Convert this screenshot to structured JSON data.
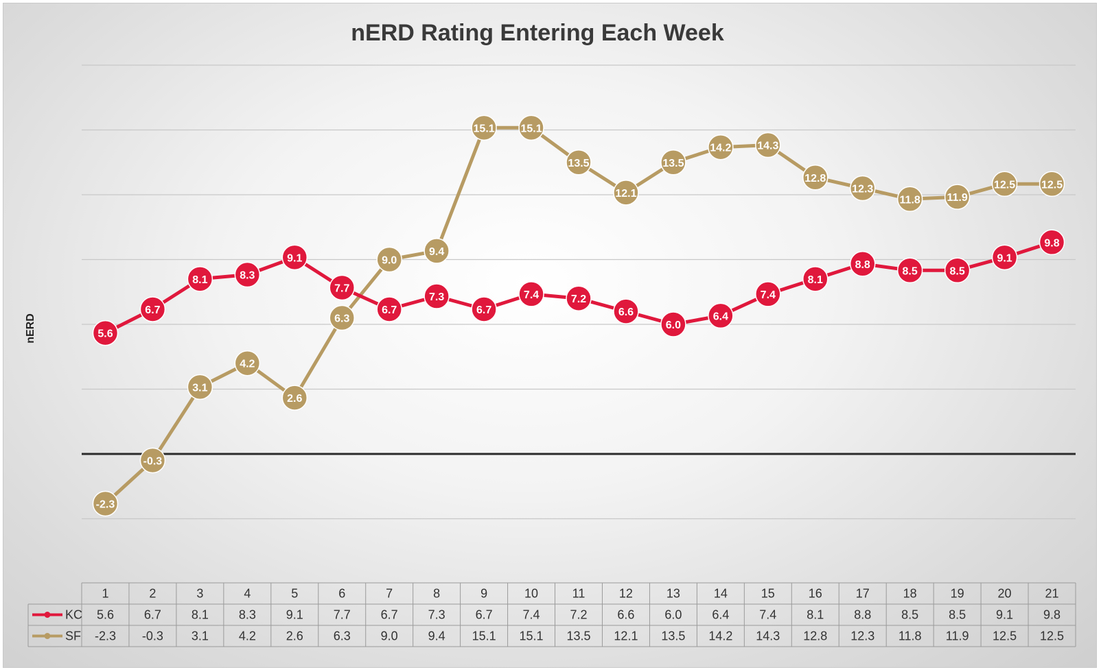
{
  "chart_data": {
    "type": "line",
    "title": "nERD Rating Entering Each Week",
    "ylabel": "nERD",
    "xlabel": "",
    "categories": [
      "1",
      "2",
      "3",
      "4",
      "5",
      "6",
      "7",
      "8",
      "9",
      "10",
      "11",
      "12",
      "13",
      "14",
      "15",
      "16",
      "17",
      "18",
      "19",
      "20",
      "21"
    ],
    "ylim": [
      -6,
      18
    ],
    "y_grid_step": 3,
    "grid": true,
    "legend_placement": "data-table-left",
    "data_table": true,
    "series": [
      {
        "name": "KC",
        "color": "#e0183c",
        "values": [
          5.6,
          6.7,
          8.1,
          8.3,
          9.1,
          7.7,
          6.7,
          7.3,
          6.7,
          7.4,
          7.2,
          6.6,
          6.0,
          6.4,
          7.4,
          8.1,
          8.8,
          8.5,
          8.5,
          9.1,
          9.8
        ]
      },
      {
        "name": "SF",
        "color": "#b79b63",
        "values": [
          -2.3,
          -0.3,
          3.1,
          4.2,
          2.6,
          6.3,
          9.0,
          9.4,
          15.1,
          15.1,
          13.5,
          12.1,
          13.5,
          14.2,
          14.3,
          12.8,
          12.3,
          11.8,
          11.9,
          12.5,
          12.5
        ]
      }
    ]
  }
}
